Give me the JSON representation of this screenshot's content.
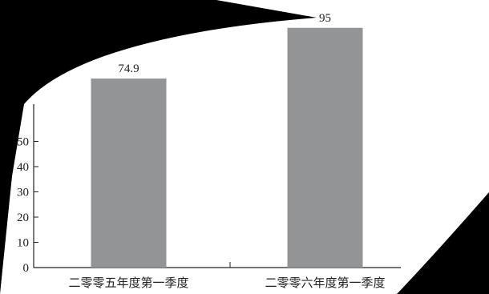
{
  "chart_data": {
    "type": "bar",
    "categories": [
      "二零零五年度第一季度",
      "二零零六年度第一季度"
    ],
    "values": [
      74.9,
      95
    ],
    "data_labels": [
      "74.9",
      "95"
    ],
    "ylim": [
      0,
      100
    ],
    "y_ticks": [
      "0",
      "10",
      "20",
      "30",
      "40",
      "50"
    ],
    "bar_color": "#939496",
    "axis_color": "#222222",
    "grid": false,
    "legend": "none"
  },
  "overlay": {
    "color": "#000000",
    "description_free": true
  }
}
